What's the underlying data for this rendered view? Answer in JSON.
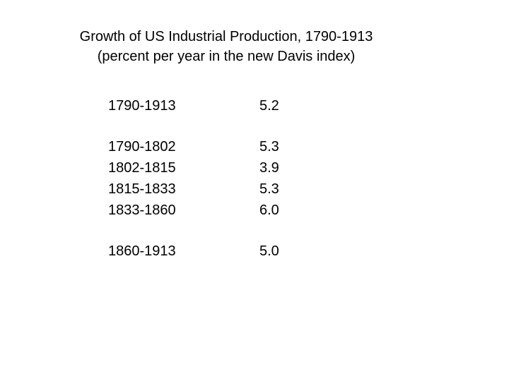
{
  "title": {
    "line1": "Growth of US Industrial Production, 1790-1913",
    "line2": "(percent per year in the new Davis index)"
  },
  "groups": [
    [
      {
        "period": "1790-1913",
        "rate": "5.2"
      }
    ],
    [
      {
        "period": "1790-1802",
        "rate": "5.3"
      },
      {
        "period": "1802-1815",
        "rate": "3.9"
      },
      {
        "period": "1815-1833",
        "rate": "5.3"
      },
      {
        "period": "1833-1860",
        "rate": "6.0"
      }
    ],
    [
      {
        "period": "1860-1913",
        "rate": "5.0"
      }
    ]
  ]
}
